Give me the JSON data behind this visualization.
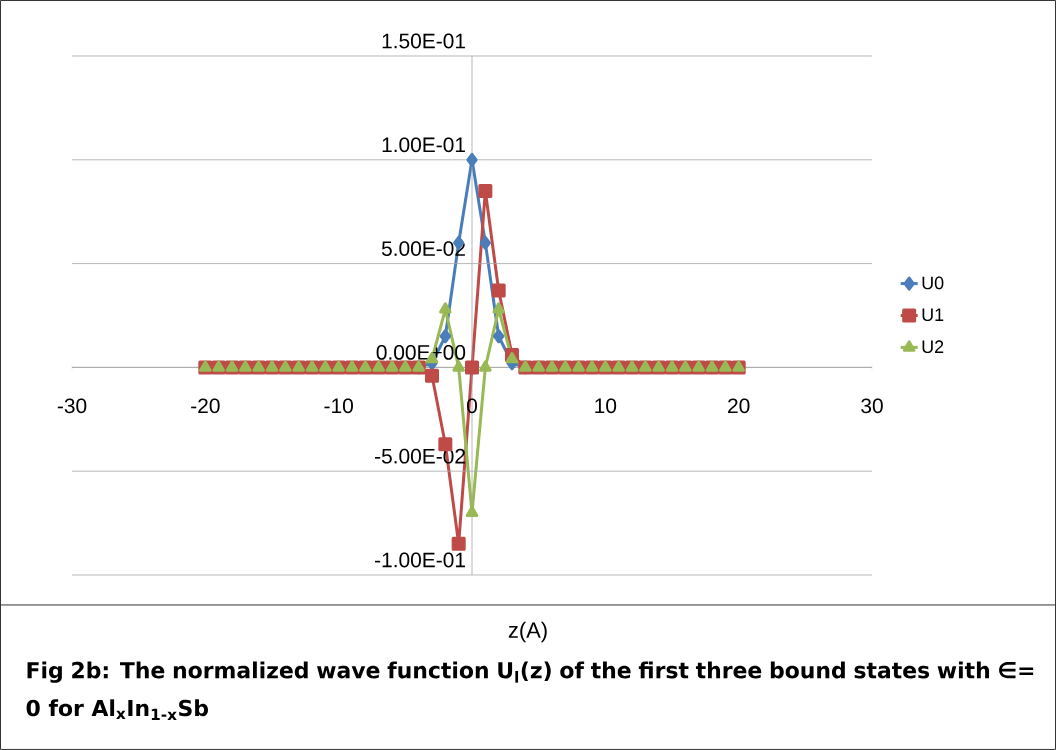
{
  "chart_data": {
    "type": "line",
    "annotations": [
      "z(A)",
      "Fig 2b: The normalized wave function U$_{l}$(z) of the first three bound states with ∈= 0  for Al$_{x}$In$_{1-x}$Sb"
    ],
    "x": [
      -20,
      -19,
      -18,
      -17,
      -16,
      -15,
      -14,
      -13,
      -12,
      -11,
      -10,
      -9,
      -8,
      -7,
      -6,
      -5,
      -4,
      -3,
      -2,
      -1,
      0,
      1,
      2,
      3,
      4,
      5,
      6,
      7,
      8,
      9,
      10,
      11,
      12,
      13,
      14,
      15,
      16,
      17,
      18,
      19,
      20
    ],
    "series": [
      {
        "name": "U0",
        "color": "#4a7ebb",
        "marker": "diamond",
        "values": [
          null,
          null,
          null,
          null,
          null,
          null,
          null,
          null,
          null,
          null,
          null,
          null,
          null,
          null,
          null,
          null,
          0,
          0.002,
          0.015,
          0.06,
          0.1,
          0.06,
          0.015,
          0.002,
          0,
          null,
          null,
          null,
          null,
          null,
          null,
          null,
          null,
          null,
          null,
          null,
          null,
          null,
          null,
          null,
          null
        ]
      },
      {
        "name": "U1",
        "color": "#be4b48",
        "marker": "square",
        "values": [
          0,
          0,
          0,
          0,
          0,
          0,
          0,
          0,
          0,
          0,
          0,
          0,
          0,
          0,
          0,
          0,
          0,
          -0.004,
          -0.037,
          -0.085,
          0,
          0.085,
          0.037,
          0.006,
          0,
          0,
          0,
          0,
          0,
          0,
          0,
          0,
          0,
          0,
          0,
          0,
          0,
          0,
          0,
          0,
          0
        ]
      },
      {
        "name": "U2",
        "color": "#98b954",
        "marker": "triangle",
        "values": [
          0,
          0,
          0,
          0,
          0,
          0,
          0,
          0,
          0,
          0,
          0,
          0,
          0,
          0,
          0,
          0,
          0,
          0.004,
          0.028,
          0,
          -0.07,
          0,
          0.028,
          0.004,
          0,
          0,
          0,
          0,
          0,
          0,
          0,
          0,
          0,
          0,
          0,
          0,
          0,
          0,
          0,
          0,
          0
        ]
      }
    ],
    "xlim": [
      -30,
      30
    ],
    "xticks": [
      -30,
      -20,
      -10,
      0,
      10,
      20,
      30
    ],
    "ylim": [
      -0.1,
      0.15
    ],
    "yticks": [
      {
        "value": -0.1,
        "label": "-1.00E-01"
      },
      {
        "value": -0.05,
        "label": "-5.00E-02"
      },
      {
        "value": 0,
        "label": "0.00E+00"
      },
      {
        "value": 0.05,
        "label": "5.00E-02"
      },
      {
        "value": 0.1,
        "label": "1.00E-01"
      },
      {
        "value": 0.15,
        "label": "1.50E-01"
      }
    ],
    "grid": "y",
    "legend": "right",
    "line_style": "solid"
  }
}
